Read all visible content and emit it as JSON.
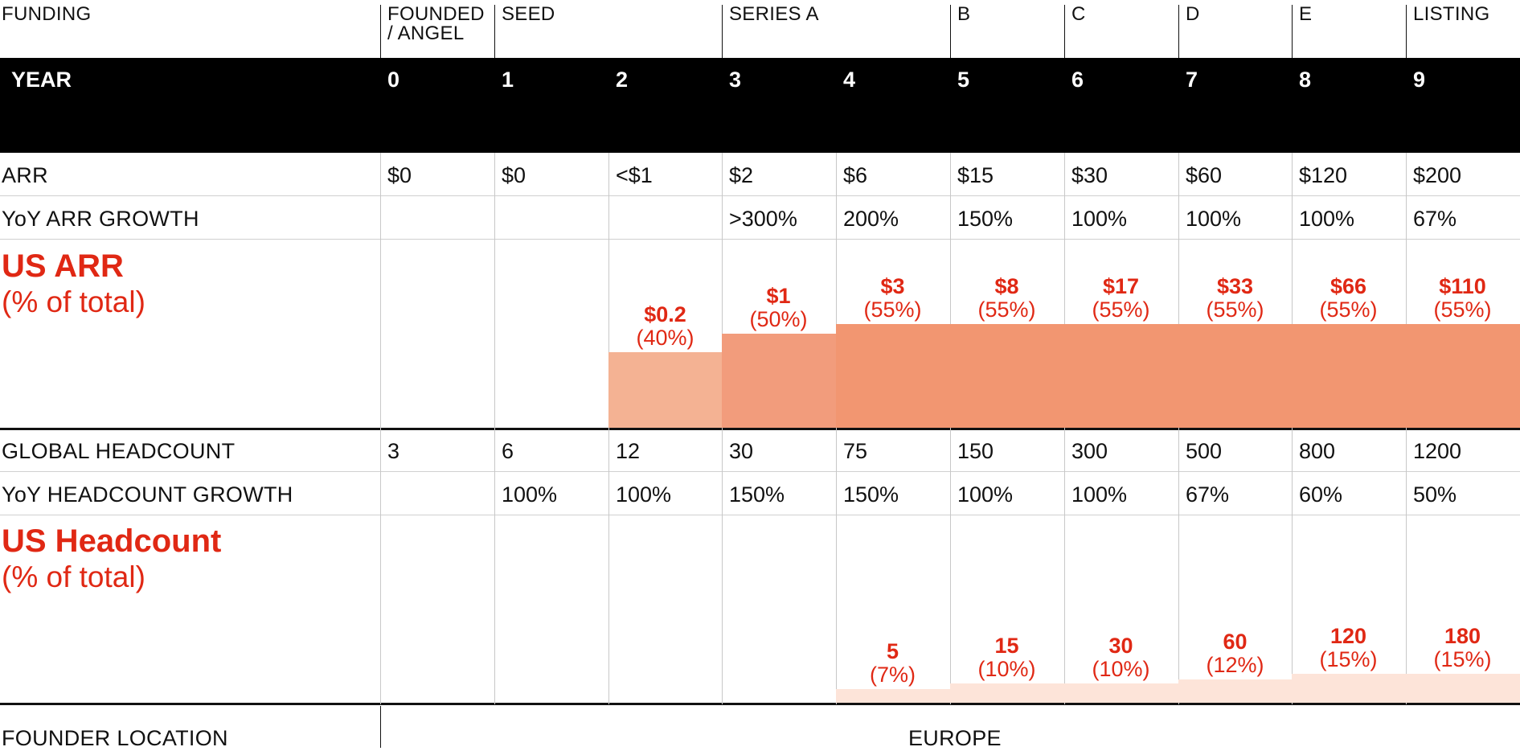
{
  "labels": {
    "funding": "FUNDING",
    "year": "YEAR",
    "arr": "ARR",
    "arr_growth": "YoY ARR GROWTH",
    "us_arr_title": "US ARR",
    "us_arr_sub": "(% of total)",
    "headcount": "GLOBAL HEADCOUNT",
    "headcount_growth": "YoY HEADCOUNT GROWTH",
    "us_headcount_title": "US Headcount",
    "us_headcount_sub": "(% of total)",
    "founder_location": "FOUNDER LOCATION",
    "founder_location_value": "EUROPE"
  },
  "colors": {
    "accent_red": "#e02814",
    "bar_light": "#f4b293",
    "bar_mid": "#f29c7c",
    "bar_full": "#f29671",
    "hc_light": "#fde4d9"
  },
  "chart_data": {
    "type": "table",
    "funding_stages": [
      {
        "label": "FOUNDED / ANGEL",
        "from_year": 0
      },
      {
        "label": "SEED",
        "from_year": 1
      },
      {
        "label": "SERIES A",
        "from_year": 3
      },
      {
        "label": "B",
        "from_year": 5
      },
      {
        "label": "C",
        "from_year": 6
      },
      {
        "label": "D",
        "from_year": 7
      },
      {
        "label": "E",
        "from_year": 8
      },
      {
        "label": "LISTING",
        "from_year": 9
      }
    ],
    "years": [
      "0",
      "1",
      "2",
      "3",
      "4",
      "5",
      "6",
      "7",
      "8",
      "9"
    ],
    "arr": [
      "$0",
      "$0",
      "<$1",
      "$2",
      "$6",
      "$15",
      "$30",
      "$60",
      "$120",
      "$200"
    ],
    "arr_growth": [
      "",
      "",
      "",
      ">300%",
      "200%",
      "150%",
      "100%",
      "100%",
      "100%",
      "67%"
    ],
    "us_arr": [
      {
        "value": "",
        "pct": "",
        "share": 0
      },
      {
        "value": "",
        "pct": "",
        "share": 0
      },
      {
        "value": "$0.2",
        "pct": "(40%)",
        "share": 40
      },
      {
        "value": "$1",
        "pct": "(50%)",
        "share": 50
      },
      {
        "value": "$3",
        "pct": "(55%)",
        "share": 55
      },
      {
        "value": "$8",
        "pct": "(55%)",
        "share": 55
      },
      {
        "value": "$17",
        "pct": "(55%)",
        "share": 55
      },
      {
        "value": "$33",
        "pct": "(55%)",
        "share": 55
      },
      {
        "value": "$66",
        "pct": "(55%)",
        "share": 55
      },
      {
        "value": "$110",
        "pct": "(55%)",
        "share": 55
      }
    ],
    "headcount": [
      "3",
      "6",
      "12",
      "30",
      "75",
      "150",
      "300",
      "500",
      "800",
      "1200"
    ],
    "headcount_growth": [
      "",
      "100%",
      "100%",
      "150%",
      "150%",
      "100%",
      "100%",
      "67%",
      "60%",
      "50%"
    ],
    "us_headcount": [
      {
        "value": "",
        "pct": "",
        "share": 0
      },
      {
        "value": "",
        "pct": "",
        "share": 0
      },
      {
        "value": "",
        "pct": "",
        "share": 0
      },
      {
        "value": "",
        "pct": "",
        "share": 0
      },
      {
        "value": "5",
        "pct": "(7%)",
        "share": 7
      },
      {
        "value": "15",
        "pct": "(10%)",
        "share": 10
      },
      {
        "value": "30",
        "pct": "(10%)",
        "share": 10
      },
      {
        "value": "60",
        "pct": "(12%)",
        "share": 12
      },
      {
        "value": "120",
        "pct": "(15%)",
        "share": 15
      },
      {
        "value": "180",
        "pct": "(15%)",
        "share": 15
      }
    ]
  }
}
